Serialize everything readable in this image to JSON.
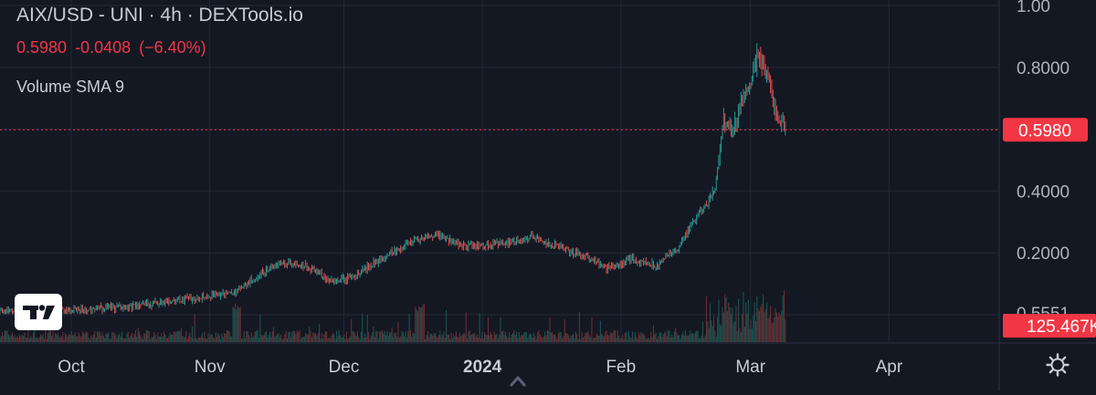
{
  "header": {
    "title": "AIX/USD - UNI · 4h · DEXTools.io",
    "price": "0.5980",
    "change": "-0.0408",
    "change_pct": "(−6.40%)",
    "volume_indicator": "Volume SMA 9"
  },
  "badges": {
    "last_price": "0.5980",
    "volume": "125.467K",
    "truncated_label": "0.5551"
  },
  "colors": {
    "background": "#141823",
    "up": "#26a69a",
    "down": "#ef5350",
    "price_badge": "#f23645",
    "text": "#c9ccd4",
    "grid": "#232837"
  },
  "icons": {
    "logo": "tradingview-logo",
    "settings": "gear-icon",
    "scroll": "chevron-up-icon"
  },
  "chart_data": {
    "type": "candlestick",
    "title": "AIX/USD - UNI · 4h · DEXTools.io",
    "interval": "4h",
    "x_tick_labels": [
      "Oct",
      "Nov",
      "Dec",
      "2024",
      "Feb",
      "Mar",
      "Apr"
    ],
    "y_tick_labels": [
      "1.00",
      "0.8000",
      "0.4000",
      "0.2000"
    ],
    "ylim": [
      0,
      1.0
    ],
    "grid": true,
    "last_price": 0.598,
    "close_series": [
      {
        "x": "2023-09-12",
        "y": 0.01
      },
      {
        "x": "2023-10-01",
        "y": 0.012
      },
      {
        "x": "2023-10-15",
        "y": 0.028
      },
      {
        "x": "2023-10-28",
        "y": 0.055
      },
      {
        "x": "2023-11-07",
        "y": 0.075
      },
      {
        "x": "2023-11-12",
        "y": 0.13
      },
      {
        "x": "2023-11-17",
        "y": 0.17
      },
      {
        "x": "2023-11-22",
        "y": 0.16
      },
      {
        "x": "2023-11-28",
        "y": 0.11
      },
      {
        "x": "2023-12-03",
        "y": 0.12
      },
      {
        "x": "2023-12-10",
        "y": 0.19
      },
      {
        "x": "2023-12-17",
        "y": 0.24
      },
      {
        "x": "2023-12-22",
        "y": 0.26
      },
      {
        "x": "2023-12-28",
        "y": 0.22
      },
      {
        "x": "2024-01-05",
        "y": 0.23
      },
      {
        "x": "2024-01-12",
        "y": 0.25
      },
      {
        "x": "2024-01-18",
        "y": 0.22
      },
      {
        "x": "2024-01-24",
        "y": 0.19
      },
      {
        "x": "2024-01-29",
        "y": 0.15
      },
      {
        "x": "2024-02-03",
        "y": 0.18
      },
      {
        "x": "2024-02-09",
        "y": 0.16
      },
      {
        "x": "2024-02-14",
        "y": 0.22
      },
      {
        "x": "2024-02-18",
        "y": 0.32
      },
      {
        "x": "2024-02-22",
        "y": 0.4
      },
      {
        "x": "2024-02-24",
        "y": 0.63
      },
      {
        "x": "2024-02-26",
        "y": 0.6
      },
      {
        "x": "2024-02-29",
        "y": 0.72
      },
      {
        "x": "2024-03-03",
        "y": 0.85
      },
      {
        "x": "2024-03-05",
        "y": 0.75
      },
      {
        "x": "2024-03-07",
        "y": 0.65
      },
      {
        "x": "2024-03-09",
        "y": 0.598
      }
    ]
  }
}
